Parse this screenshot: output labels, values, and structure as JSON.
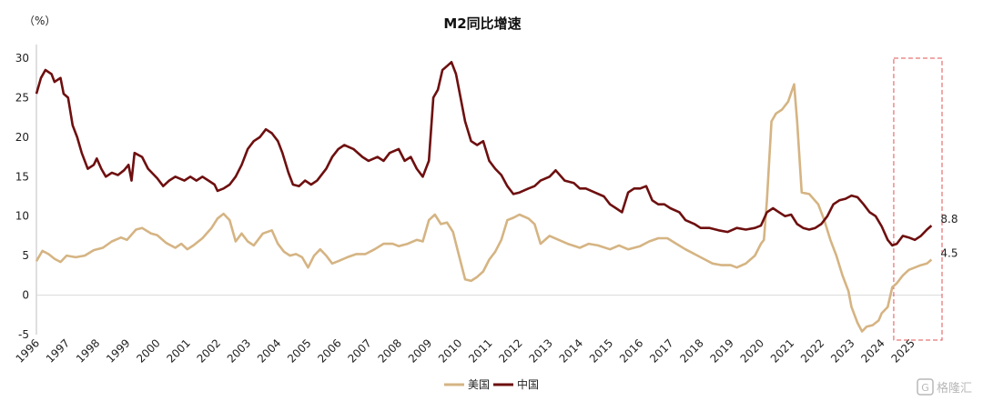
{
  "chart_data": {
    "type": "line",
    "title": "M2同比增速",
    "unit_label": "（%）",
    "ylim": [
      -5,
      30
    ],
    "yticks": [
      "30",
      "25",
      "20",
      "15",
      "10",
      "5",
      "0",
      "-5"
    ],
    "xlim": [
      1996,
      2026
    ],
    "xticks": [
      "1996",
      "1997",
      "1998",
      "1999",
      "2000",
      "2001",
      "2002",
      "2003",
      "2004",
      "2005",
      "2006",
      "2007",
      "2008",
      "2009",
      "2010",
      "2011",
      "2012",
      "2013",
      "2014",
      "2015",
      "2016",
      "2017",
      "2018",
      "2019",
      "2020",
      "2021",
      "2022",
      "2023",
      "2024",
      "2025"
    ],
    "grid": false,
    "legend_position": "bottom-center",
    "series": [
      {
        "name": "美国",
        "color": "#d5b483",
        "end_label": "4.5",
        "points": [
          [
            1996.0,
            4.3
          ],
          [
            1996.2,
            5.6
          ],
          [
            1996.4,
            5.2
          ],
          [
            1996.6,
            4.6
          ],
          [
            1996.8,
            4.2
          ],
          [
            1997.0,
            5.0
          ],
          [
            1997.3,
            4.8
          ],
          [
            1997.6,
            5.0
          ],
          [
            1997.9,
            5.7
          ],
          [
            1998.2,
            6.0
          ],
          [
            1998.5,
            6.8
          ],
          [
            1998.8,
            7.3
          ],
          [
            1999.0,
            7.0
          ],
          [
            1999.3,
            8.3
          ],
          [
            1999.5,
            8.5
          ],
          [
            1999.8,
            7.8
          ],
          [
            2000.0,
            7.6
          ],
          [
            2000.3,
            6.6
          ],
          [
            2000.6,
            6.0
          ],
          [
            2000.8,
            6.5
          ],
          [
            2001.0,
            5.8
          ],
          [
            2001.2,
            6.3
          ],
          [
            2001.5,
            7.2
          ],
          [
            2001.8,
            8.5
          ],
          [
            2002.0,
            9.7
          ],
          [
            2002.2,
            10.3
          ],
          [
            2002.4,
            9.5
          ],
          [
            2002.6,
            6.8
          ],
          [
            2002.8,
            7.8
          ],
          [
            2003.0,
            6.8
          ],
          [
            2003.2,
            6.3
          ],
          [
            2003.5,
            7.8
          ],
          [
            2003.8,
            8.2
          ],
          [
            2004.0,
            6.5
          ],
          [
            2004.2,
            5.5
          ],
          [
            2004.4,
            5.0
          ],
          [
            2004.6,
            5.2
          ],
          [
            2004.8,
            4.8
          ],
          [
            2005.0,
            3.5
          ],
          [
            2005.2,
            5.0
          ],
          [
            2005.4,
            5.8
          ],
          [
            2005.6,
            5.0
          ],
          [
            2005.8,
            4.0
          ],
          [
            2006.0,
            4.3
          ],
          [
            2006.3,
            4.8
          ],
          [
            2006.6,
            5.2
          ],
          [
            2006.9,
            5.2
          ],
          [
            2007.2,
            5.8
          ],
          [
            2007.5,
            6.5
          ],
          [
            2007.8,
            6.5
          ],
          [
            2008.0,
            6.2
          ],
          [
            2008.3,
            6.5
          ],
          [
            2008.6,
            7.0
          ],
          [
            2008.8,
            6.8
          ],
          [
            2009.0,
            9.5
          ],
          [
            2009.2,
            10.2
          ],
          [
            2009.4,
            9.0
          ],
          [
            2009.6,
            9.2
          ],
          [
            2009.8,
            8.0
          ],
          [
            2010.0,
            5.0
          ],
          [
            2010.2,
            2.0
          ],
          [
            2010.4,
            1.8
          ],
          [
            2010.6,
            2.3
          ],
          [
            2010.8,
            3.0
          ],
          [
            2011.0,
            4.5
          ],
          [
            2011.2,
            5.5
          ],
          [
            2011.4,
            7.0
          ],
          [
            2011.6,
            9.5
          ],
          [
            2011.8,
            9.8
          ],
          [
            2012.0,
            10.2
          ],
          [
            2012.3,
            9.7
          ],
          [
            2012.5,
            9.0
          ],
          [
            2012.7,
            6.5
          ],
          [
            2013.0,
            7.5
          ],
          [
            2013.3,
            7.0
          ],
          [
            2013.6,
            6.5
          ],
          [
            2014.0,
            6.0
          ],
          [
            2014.3,
            6.5
          ],
          [
            2014.6,
            6.3
          ],
          [
            2015.0,
            5.8
          ],
          [
            2015.3,
            6.3
          ],
          [
            2015.6,
            5.8
          ],
          [
            2016.0,
            6.2
          ],
          [
            2016.3,
            6.8
          ],
          [
            2016.6,
            7.2
          ],
          [
            2016.9,
            7.2
          ],
          [
            2017.2,
            6.5
          ],
          [
            2017.5,
            5.8
          ],
          [
            2017.8,
            5.2
          ],
          [
            2018.1,
            4.6
          ],
          [
            2018.4,
            4.0
          ],
          [
            2018.7,
            3.8
          ],
          [
            2019.0,
            3.8
          ],
          [
            2019.2,
            3.5
          ],
          [
            2019.5,
            4.0
          ],
          [
            2019.8,
            5.0
          ],
          [
            2020.0,
            6.5
          ],
          [
            2020.1,
            7.0
          ],
          [
            2020.2,
            12.0
          ],
          [
            2020.35,
            22.0
          ],
          [
            2020.5,
            23.0
          ],
          [
            2020.7,
            23.5
          ],
          [
            2020.9,
            24.5
          ],
          [
            2021.1,
            26.7
          ],
          [
            2021.2,
            22.0
          ],
          [
            2021.35,
            13.0
          ],
          [
            2021.6,
            12.8
          ],
          [
            2021.9,
            11.5
          ],
          [
            2022.1,
            9.5
          ],
          [
            2022.3,
            7.0
          ],
          [
            2022.5,
            5.0
          ],
          [
            2022.7,
            2.5
          ],
          [
            2022.9,
            0.5
          ],
          [
            2023.0,
            -1.5
          ],
          [
            2023.2,
            -3.5
          ],
          [
            2023.35,
            -4.6
          ],
          [
            2023.5,
            -4.0
          ],
          [
            2023.7,
            -3.8
          ],
          [
            2023.9,
            -3.2
          ],
          [
            2024.0,
            -2.3
          ],
          [
            2024.2,
            -1.5
          ],
          [
            2024.35,
            1.0
          ],
          [
            2024.5,
            1.5
          ],
          [
            2024.7,
            2.5
          ],
          [
            2024.9,
            3.2
          ],
          [
            2025.1,
            3.5
          ],
          [
            2025.3,
            3.8
          ],
          [
            2025.5,
            4.0
          ],
          [
            2025.65,
            4.5
          ]
        ]
      },
      {
        "name": "中国",
        "color": "#6e0f0f",
        "end_label": "8.8",
        "points": [
          [
            1996.0,
            25.5
          ],
          [
            1996.15,
            27.5
          ],
          [
            1996.3,
            28.5
          ],
          [
            1996.5,
            28.0
          ],
          [
            1996.6,
            27.0
          ],
          [
            1996.8,
            27.5
          ],
          [
            1996.9,
            25.5
          ],
          [
            1997.05,
            25.0
          ],
          [
            1997.2,
            21.5
          ],
          [
            1997.35,
            20.0
          ],
          [
            1997.5,
            18.0
          ],
          [
            1997.7,
            16.0
          ],
          [
            1997.9,
            16.5
          ],
          [
            1998.0,
            17.3
          ],
          [
            1998.15,
            16.0
          ],
          [
            1998.3,
            15.0
          ],
          [
            1998.5,
            15.5
          ],
          [
            1998.7,
            15.2
          ],
          [
            1998.9,
            15.8
          ],
          [
            1999.05,
            16.5
          ],
          [
            1999.15,
            14.5
          ],
          [
            1999.25,
            18.0
          ],
          [
            1999.5,
            17.5
          ],
          [
            1999.7,
            16.0
          ],
          [
            2000.0,
            14.8
          ],
          [
            2000.2,
            13.8
          ],
          [
            2000.4,
            14.5
          ],
          [
            2000.6,
            15.0
          ],
          [
            2000.9,
            14.5
          ],
          [
            2001.1,
            15.0
          ],
          [
            2001.3,
            14.5
          ],
          [
            2001.5,
            15.0
          ],
          [
            2001.7,
            14.5
          ],
          [
            2001.9,
            14.0
          ],
          [
            2002.0,
            13.2
          ],
          [
            2002.2,
            13.5
          ],
          [
            2002.4,
            14.0
          ],
          [
            2002.6,
            15.0
          ],
          [
            2002.8,
            16.5
          ],
          [
            2003.0,
            18.5
          ],
          [
            2003.2,
            19.5
          ],
          [
            2003.4,
            20.0
          ],
          [
            2003.6,
            21.0
          ],
          [
            2003.8,
            20.5
          ],
          [
            2004.0,
            19.5
          ],
          [
            2004.15,
            18.0
          ],
          [
            2004.35,
            15.5
          ],
          [
            2004.5,
            14.0
          ],
          [
            2004.7,
            13.8
          ],
          [
            2004.9,
            14.5
          ],
          [
            2005.1,
            14.0
          ],
          [
            2005.3,
            14.5
          ],
          [
            2005.6,
            16.0
          ],
          [
            2005.8,
            17.5
          ],
          [
            2006.0,
            18.5
          ],
          [
            2006.2,
            19.0
          ],
          [
            2006.5,
            18.5
          ],
          [
            2006.8,
            17.5
          ],
          [
            2007.0,
            17.0
          ],
          [
            2007.3,
            17.5
          ],
          [
            2007.5,
            17.0
          ],
          [
            2007.7,
            18.0
          ],
          [
            2008.0,
            18.5
          ],
          [
            2008.2,
            17.0
          ],
          [
            2008.4,
            17.5
          ],
          [
            2008.6,
            16.0
          ],
          [
            2008.8,
            15.0
          ],
          [
            2009.0,
            17.0
          ],
          [
            2009.15,
            25.0
          ],
          [
            2009.3,
            26.0
          ],
          [
            2009.45,
            28.5
          ],
          [
            2009.6,
            29.0
          ],
          [
            2009.75,
            29.5
          ],
          [
            2009.9,
            28.0
          ],
          [
            2010.05,
            25.0
          ],
          [
            2010.2,
            22.0
          ],
          [
            2010.4,
            19.5
          ],
          [
            2010.6,
            19.0
          ],
          [
            2010.8,
            19.5
          ],
          [
            2011.0,
            17.0
          ],
          [
            2011.2,
            16.0
          ],
          [
            2011.4,
            15.2
          ],
          [
            2011.6,
            13.8
          ],
          [
            2011.8,
            12.8
          ],
          [
            2012.0,
            13.0
          ],
          [
            2012.3,
            13.5
          ],
          [
            2012.5,
            13.8
          ],
          [
            2012.7,
            14.5
          ],
          [
            2013.0,
            15.0
          ],
          [
            2013.2,
            15.8
          ],
          [
            2013.5,
            14.5
          ],
          [
            2013.8,
            14.2
          ],
          [
            2014.0,
            13.5
          ],
          [
            2014.2,
            13.5
          ],
          [
            2014.5,
            13.0
          ],
          [
            2014.8,
            12.5
          ],
          [
            2015.0,
            11.5
          ],
          [
            2015.2,
            11.0
          ],
          [
            2015.4,
            10.5
          ],
          [
            2015.6,
            13.0
          ],
          [
            2015.8,
            13.5
          ],
          [
            2016.0,
            13.5
          ],
          [
            2016.2,
            13.8
          ],
          [
            2016.4,
            12.0
          ],
          [
            2016.6,
            11.5
          ],
          [
            2016.8,
            11.5
          ],
          [
            2017.0,
            11.0
          ],
          [
            2017.3,
            10.5
          ],
          [
            2017.5,
            9.5
          ],
          [
            2017.8,
            9.0
          ],
          [
            2018.0,
            8.5
          ],
          [
            2018.3,
            8.5
          ],
          [
            2018.6,
            8.2
          ],
          [
            2018.9,
            8.0
          ],
          [
            2019.2,
            8.5
          ],
          [
            2019.5,
            8.3
          ],
          [
            2019.8,
            8.5
          ],
          [
            2020.0,
            8.8
          ],
          [
            2020.2,
            10.5
          ],
          [
            2020.4,
            11.0
          ],
          [
            2020.6,
            10.5
          ],
          [
            2020.8,
            10.0
          ],
          [
            2021.0,
            10.2
          ],
          [
            2021.2,
            9.0
          ],
          [
            2021.4,
            8.5
          ],
          [
            2021.6,
            8.3
          ],
          [
            2021.8,
            8.5
          ],
          [
            2022.0,
            9.0
          ],
          [
            2022.2,
            10.0
          ],
          [
            2022.4,
            11.5
          ],
          [
            2022.6,
            12.0
          ],
          [
            2022.8,
            12.2
          ],
          [
            2023.0,
            12.6
          ],
          [
            2023.2,
            12.4
          ],
          [
            2023.4,
            11.5
          ],
          [
            2023.6,
            10.5
          ],
          [
            2023.8,
            10.0
          ],
          [
            2024.0,
            8.7
          ],
          [
            2024.2,
            7.0
          ],
          [
            2024.35,
            6.3
          ],
          [
            2024.5,
            6.5
          ],
          [
            2024.7,
            7.5
          ],
          [
            2024.9,
            7.3
          ],
          [
            2025.1,
            7.0
          ],
          [
            2025.3,
            7.5
          ],
          [
            2025.5,
            8.3
          ],
          [
            2025.65,
            8.8
          ]
        ]
      }
    ],
    "highlight_range": [
      2024.4,
      2026.0
    ],
    "highlight_color": "#e05050"
  },
  "watermark": "格隆汇"
}
